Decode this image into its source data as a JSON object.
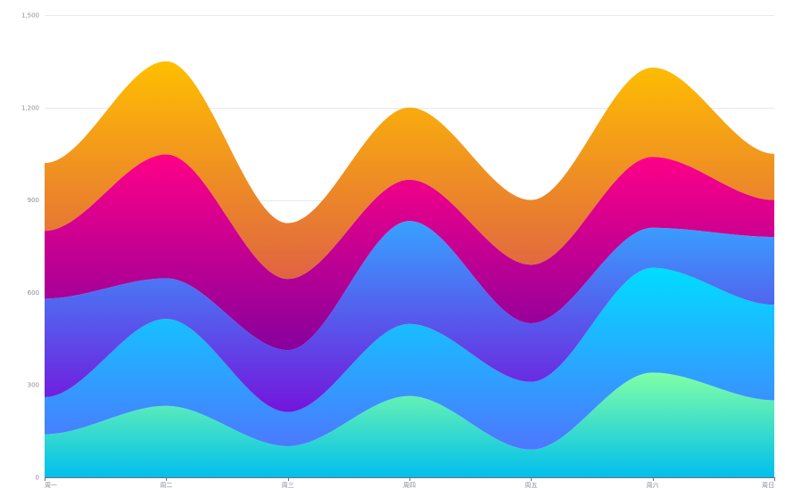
{
  "chart_data": {
    "type": "area",
    "stacked": true,
    "smooth": true,
    "categories": [
      "周一",
      "周二",
      "周三",
      "周四",
      "周五",
      "周六",
      "周日"
    ],
    "ylim": [
      0,
      1500
    ],
    "y_ticks": [
      0,
      300,
      600,
      900,
      1200,
      1500
    ],
    "y_tick_labels": [
      "0",
      "300",
      "600",
      "900",
      "1,200",
      "1,500"
    ],
    "grid": true,
    "series": [
      {
        "values": [
          140,
          232,
          101,
          264,
          90,
          340,
          250
        ],
        "color_top": "#80FFA5",
        "color_bottom": "#01BFEC"
      },
      {
        "values": [
          120,
          282,
          111,
          234,
          220,
          340,
          310
        ],
        "color_top": "#00DDFF",
        "color_bottom": "#4D77FF"
      },
      {
        "values": [
          320,
          132,
          201,
          334,
          190,
          130,
          220
        ],
        "color_top": "#37A2FF",
        "color_bottom": "#7415DB"
      },
      {
        "values": [
          220,
          402,
          231,
          134,
          190,
          230,
          120
        ],
        "color_top": "#FF0087",
        "color_bottom": "#87009D"
      },
      {
        "values": [
          220,
          302,
          181,
          234,
          210,
          290,
          150
        ],
        "color_top": "#FFBF00",
        "color_bottom": "#E06343"
      }
    ]
  }
}
